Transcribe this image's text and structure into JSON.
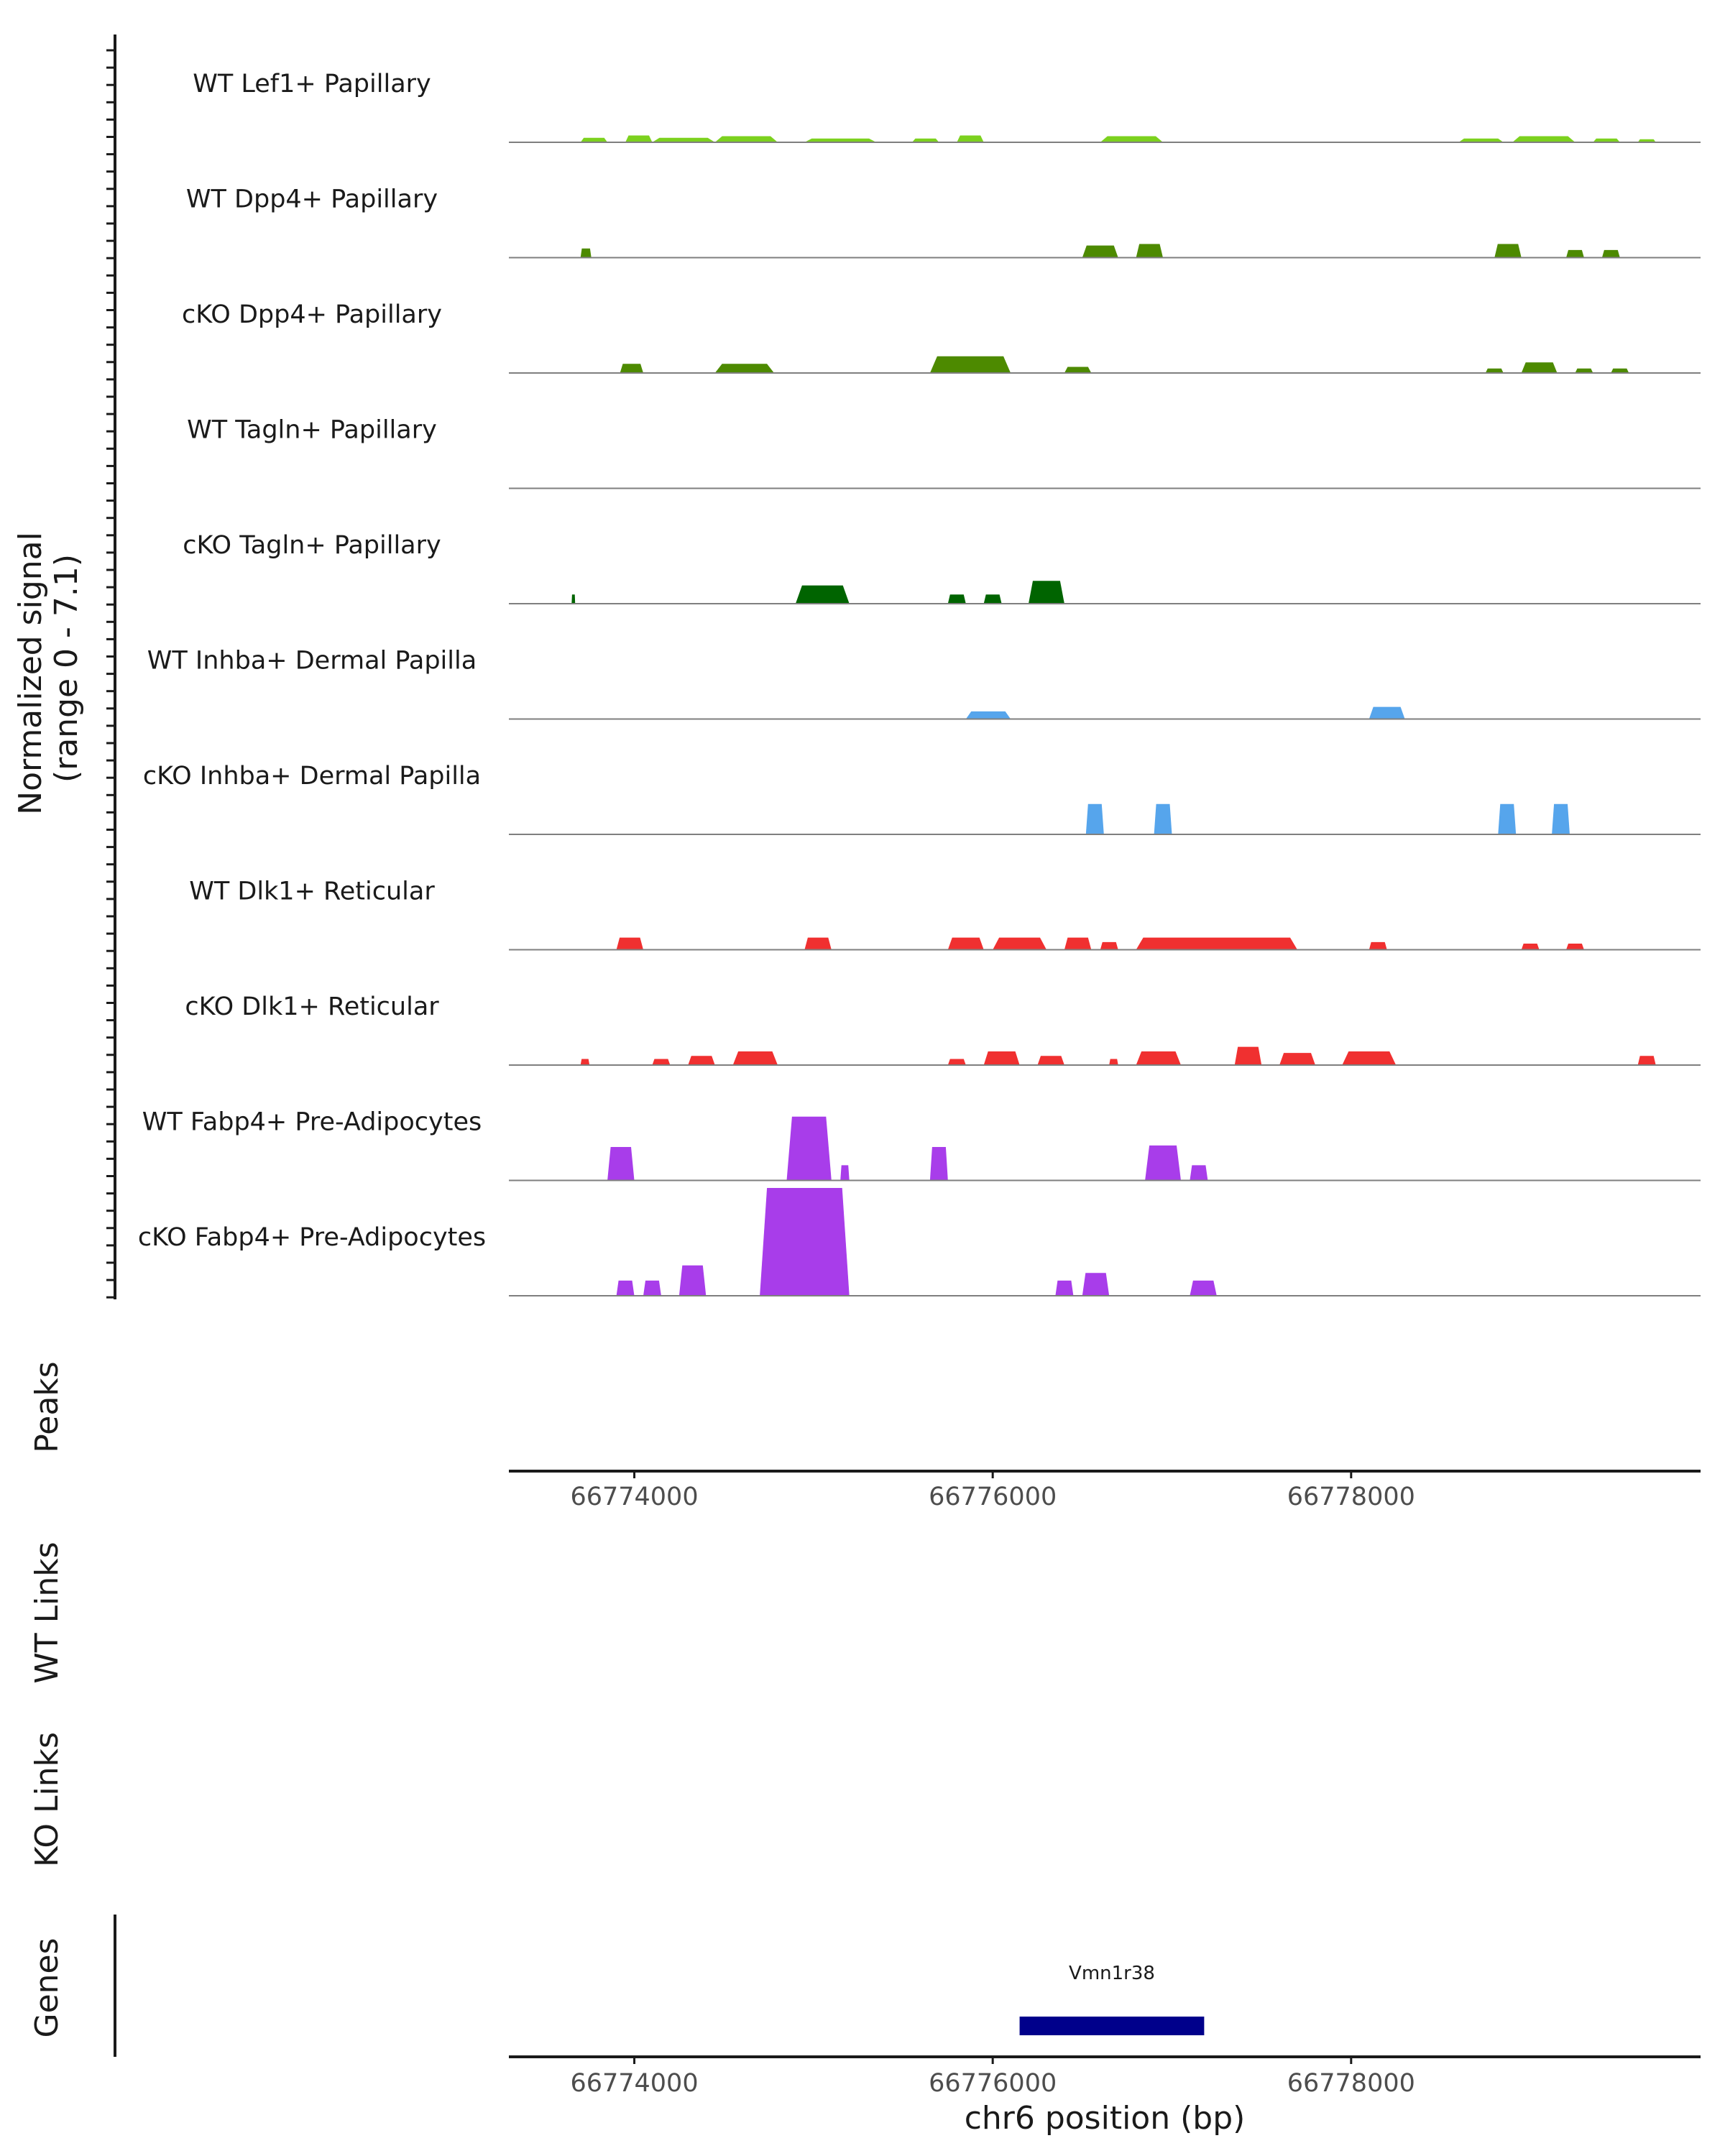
{
  "chart_data": {
    "type": "area",
    "title": "",
    "signal_axis_label_line1": "Normalized signal",
    "signal_axis_label_line2": "(range 0 - 7.1)",
    "signal_range": [
      0,
      7.1
    ],
    "x_range_bp": [
      66773300,
      66779950
    ],
    "xlabel": "chr6 position (bp)",
    "x_ticks": [
      {
        "value": 66774000,
        "label": "66774000"
      },
      {
        "value": 66776000,
        "label": "66776000"
      },
      {
        "value": 66778000,
        "label": "66778000"
      }
    ],
    "panel_labels": {
      "peaks": "Peaks",
      "wt_links": "WT Links",
      "ko_links": "KO Links",
      "genes": "Genes"
    },
    "genes": [
      {
        "name": "Vmn1r38",
        "start": 66776150,
        "end": 66777180,
        "color": "#00008b"
      }
    ],
    "tracks": [
      {
        "name": "WT Lef1+ Papillary",
        "color": "#7cd11e",
        "peaks": [
          [
            66773700,
            66773850,
            0.3
          ],
          [
            66773950,
            66774100,
            0.45
          ],
          [
            66774100,
            66774450,
            0.3
          ],
          [
            66774450,
            66774800,
            0.4
          ],
          [
            66774950,
            66775350,
            0.25
          ],
          [
            66775550,
            66775700,
            0.25
          ],
          [
            66775800,
            66775950,
            0.45
          ],
          [
            66776600,
            66776950,
            0.4
          ],
          [
            66778600,
            66778850,
            0.25
          ],
          [
            66778900,
            66779250,
            0.4
          ],
          [
            66779350,
            66779500,
            0.25
          ],
          [
            66779600,
            66779700,
            0.2
          ]
        ]
      },
      {
        "name": "WT Dpp4+ Papillary",
        "color": "#4d8a00",
        "peaks": [
          [
            66773700,
            66773760,
            0.6
          ],
          [
            66776500,
            66776700,
            0.8
          ],
          [
            66776800,
            66776950,
            0.9
          ],
          [
            66778800,
            66778950,
            0.9
          ],
          [
            66779200,
            66779300,
            0.5
          ],
          [
            66779400,
            66779500,
            0.5
          ]
        ]
      },
      {
        "name": "cKO Dpp4+ Papillary",
        "color": "#4d8a00",
        "peaks": [
          [
            66773920,
            66774050,
            0.6
          ],
          [
            66774450,
            66774780,
            0.6
          ],
          [
            66775650,
            66776100,
            1.1
          ],
          [
            66776400,
            66776550,
            0.4
          ],
          [
            66778750,
            66778850,
            0.3
          ],
          [
            66778950,
            66779150,
            0.7
          ],
          [
            66779250,
            66779350,
            0.3
          ],
          [
            66779450,
            66779550,
            0.3
          ]
        ]
      },
      {
        "name": "WT Tagln+ Papillary",
        "color": "#006400",
        "peaks": []
      },
      {
        "name": "cKO Tagln+ Papillary",
        "color": "#006400",
        "peaks": [
          [
            66773650,
            66773670,
            0.6
          ],
          [
            66774900,
            66775200,
            1.2
          ],
          [
            66775750,
            66775850,
            0.6
          ],
          [
            66775950,
            66776050,
            0.6
          ],
          [
            66776200,
            66776400,
            1.5
          ]
        ]
      },
      {
        "name": "WT Inhba+ Dermal Papilla",
        "color": "#56a5ec",
        "peaks": [
          [
            66775850,
            66776100,
            0.5
          ],
          [
            66778100,
            66778300,
            0.8
          ]
        ]
      },
      {
        "name": "cKO Inhba+ Dermal Papilla",
        "color": "#56a5ec",
        "peaks": [
          [
            66776520,
            66776620,
            2.0
          ],
          [
            66776900,
            66777000,
            2.0
          ],
          [
            66778820,
            66778920,
            2.0
          ],
          [
            66779120,
            66779220,
            2.0
          ]
        ]
      },
      {
        "name": "WT Dlk1+ Reticular",
        "color": "#f03030",
        "peaks": [
          [
            66773900,
            66774050,
            0.8
          ],
          [
            66774950,
            66775100,
            0.8
          ],
          [
            66775750,
            66775950,
            0.8
          ],
          [
            66776000,
            66776300,
            0.8
          ],
          [
            66776400,
            66776550,
            0.8
          ],
          [
            66776600,
            66776700,
            0.5
          ],
          [
            66776800,
            66777700,
            0.8
          ],
          [
            66778100,
            66778200,
            0.5
          ],
          [
            66778950,
            66779050,
            0.4
          ],
          [
            66779200,
            66779300,
            0.4
          ]
        ]
      },
      {
        "name": "cKO Dlk1+ Reticular",
        "color": "#f03030",
        "peaks": [
          [
            66773700,
            66773750,
            0.4
          ],
          [
            66774100,
            66774200,
            0.4
          ],
          [
            66774300,
            66774450,
            0.6
          ],
          [
            66774550,
            66774800,
            0.9
          ],
          [
            66775750,
            66775850,
            0.4
          ],
          [
            66775950,
            66776150,
            0.9
          ],
          [
            66776250,
            66776400,
            0.6
          ],
          [
            66776650,
            66776700,
            0.4
          ],
          [
            66776800,
            66777050,
            0.9
          ],
          [
            66777350,
            66777500,
            1.2
          ],
          [
            66777600,
            66777800,
            0.8
          ],
          [
            66777950,
            66778250,
            0.9
          ],
          [
            66779600,
            66779700,
            0.6
          ]
        ]
      },
      {
        "name": "WT Fabp4+ Pre-Adipocytes",
        "color": "#a83dea",
        "peaks": [
          [
            66773850,
            66774000,
            2.2
          ],
          [
            66774850,
            66775100,
            4.2
          ],
          [
            66775150,
            66775200,
            1.0
          ],
          [
            66775650,
            66775750,
            2.2
          ],
          [
            66776850,
            66777050,
            2.3
          ],
          [
            66777100,
            66777200,
            1.0
          ]
        ]
      },
      {
        "name": "cKO Fabp4+ Pre-Adipocytes",
        "color": "#a83dea",
        "peaks": [
          [
            66773900,
            66774000,
            1.0
          ],
          [
            66774050,
            66774150,
            1.0
          ],
          [
            66774250,
            66774400,
            2.0
          ],
          [
            66774700,
            66775200,
            7.1
          ],
          [
            66776350,
            66776450,
            1.0
          ],
          [
            66776500,
            66776650,
            1.5
          ],
          [
            66777100,
            66777250,
            1.0
          ]
        ]
      }
    ]
  }
}
